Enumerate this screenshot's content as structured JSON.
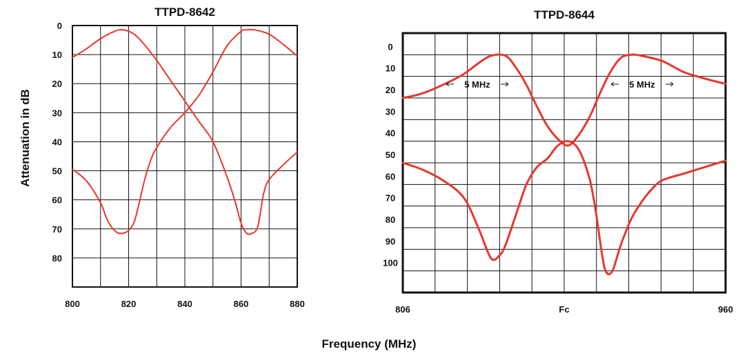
{
  "ylabel": "Attenuation in dB",
  "xlabel": "Frequency (MHz)",
  "colors": {
    "curve": "#e8372c",
    "grid": "#111111"
  },
  "chart_data": [
    {
      "type": "line",
      "title": "TTPD-8642",
      "xlim": [
        800,
        880
      ],
      "ylim": [
        0,
        90
      ],
      "x_ticks": [
        "800",
        "820",
        "840",
        "860",
        "880"
      ],
      "y_ticks": [
        "0",
        "10",
        "20",
        "30",
        "40",
        "50",
        "60",
        "70",
        "80"
      ],
      "grid": true,
      "series": [
        {
          "x": [
            800,
            805,
            810,
            815,
            818,
            822,
            826,
            830,
            835,
            840,
            845,
            850,
            855,
            858,
            860,
            862,
            864,
            866,
            868,
            870,
            875,
            880
          ],
          "y": [
            11,
            8,
            4.5,
            2,
            1.5,
            3,
            7,
            12,
            19,
            26,
            33,
            40,
            52,
            61,
            68,
            71.5,
            71.5,
            69,
            58,
            53,
            48,
            43.5
          ]
        },
        {
          "x": [
            800,
            805,
            810,
            812,
            814,
            816,
            818,
            820,
            822,
            824,
            826,
            828,
            830,
            835,
            840,
            845,
            850,
            855,
            860,
            862,
            865,
            870,
            875,
            880
          ],
          "y": [
            49.5,
            53.5,
            61,
            66,
            69.5,
            71.3,
            71.5,
            70.5,
            67.5,
            60,
            52,
            46,
            42,
            35,
            30,
            24,
            16,
            7,
            2,
            1.5,
            1.5,
            3,
            6.5,
            10.5
          ]
        }
      ]
    },
    {
      "type": "line",
      "title": "TTPD-8644",
      "xlim": [
        806,
        960
      ],
      "ylim": [
        -10,
        110
      ],
      "x_ticks": [
        "806",
        "Fc",
        "960"
      ],
      "y_ticks": [
        "0",
        "10",
        "20",
        "30",
        "40",
        "50",
        "60",
        "70",
        "80",
        "90",
        "100"
      ],
      "grid": true,
      "annotations": [
        "5 MHz",
        "5 MHz"
      ],
      "series": [
        {
          "x": [
            806,
            815,
            825,
            835,
            842,
            848,
            852,
            855,
            860,
            865,
            870,
            875,
            880,
            885,
            890,
            895,
            898,
            901,
            903,
            906,
            910,
            915,
            920,
            925,
            930,
            940,
            950,
            960
          ],
          "y": [
            50,
            53,
            58,
            66,
            80,
            94,
            93,
            88,
            74,
            60,
            52,
            48,
            42,
            40,
            44,
            57,
            72,
            92,
            100.5,
            100,
            88,
            76,
            68,
            62,
            58,
            55,
            52,
            49
          ]
        },
        {
          "x": [
            806,
            815,
            825,
            835,
            842,
            848,
            855,
            860,
            865,
            870,
            875,
            880,
            885,
            890,
            895,
            900,
            905,
            910,
            915,
            920,
            930,
            940,
            950,
            960
          ],
          "y": [
            20,
            18,
            14,
            9,
            4,
            0.5,
            0.5,
            6,
            14,
            24,
            33,
            39,
            42,
            37,
            29,
            18,
            8,
            1.5,
            0,
            0.5,
            3,
            8,
            11,
            13.5
          ]
        }
      ]
    }
  ]
}
